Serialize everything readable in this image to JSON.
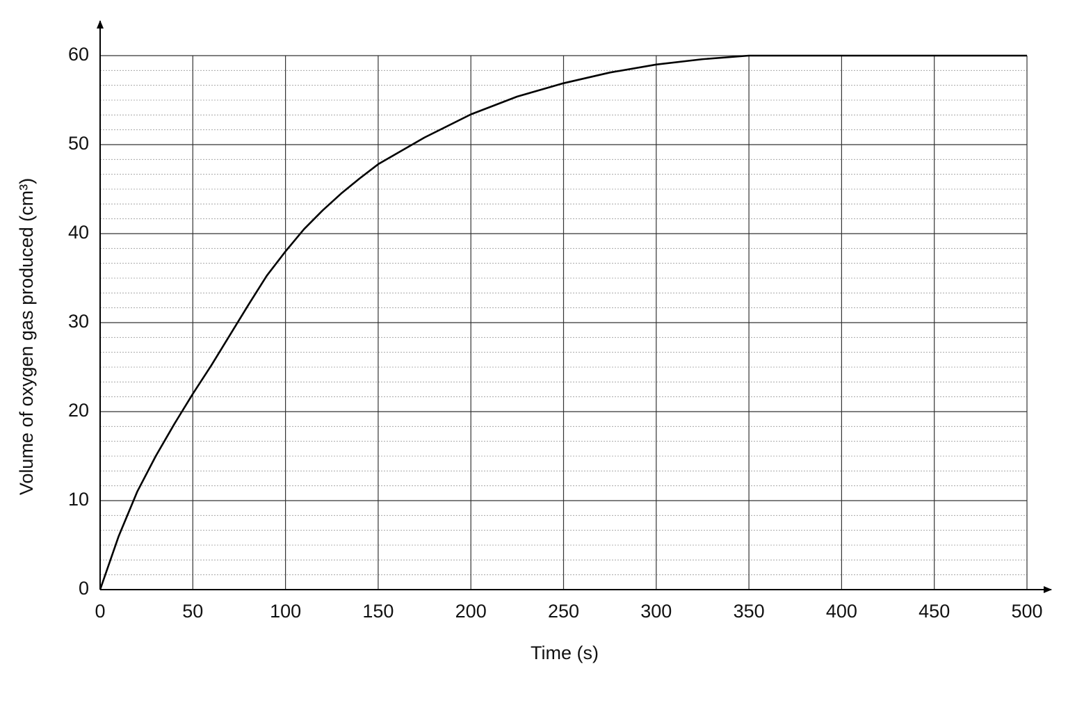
{
  "chart_data": {
    "type": "line",
    "x_label": "Time (s)",
    "y_label": "Volume of oxygen gas produced (cm³)",
    "x": [
      0,
      10,
      20,
      30,
      40,
      50,
      60,
      70,
      80,
      90,
      100,
      110,
      120,
      130,
      140,
      150,
      175,
      200,
      225,
      250,
      275,
      300,
      325,
      350,
      400,
      450,
      500
    ],
    "series": [
      {
        "color": "#000000",
        "values": [
          0,
          6,
          11,
          15,
          18.6,
          22,
          25.2,
          28.6,
          32,
          35.3,
          38,
          40.5,
          42.6,
          44.5,
          46.2,
          47.8,
          50.8,
          53.4,
          55.4,
          56.9,
          58.1,
          59,
          59.6,
          60,
          60,
          60,
          60
        ]
      }
    ],
    "xlim": [
      0,
      500
    ],
    "xticks": [
      0,
      50,
      100,
      150,
      200,
      250,
      300,
      350,
      400,
      450,
      500
    ],
    "ylim": [
      0,
      60
    ],
    "yticks": [
      0,
      10,
      20,
      30,
      40,
      50,
      60
    ],
    "grid": true,
    "minor_grid": true
  }
}
